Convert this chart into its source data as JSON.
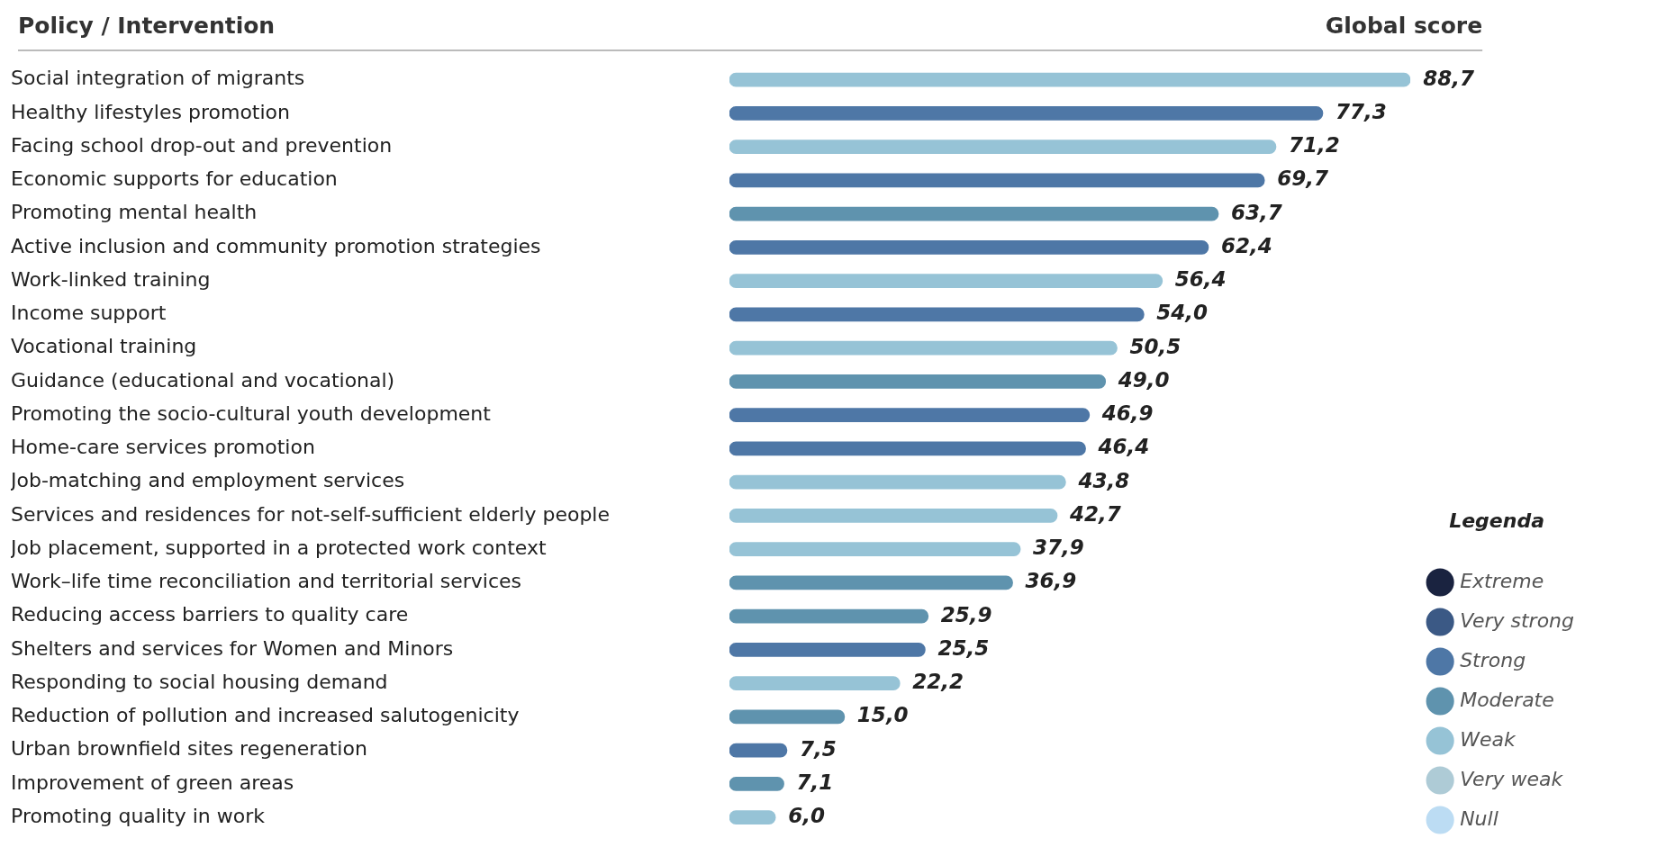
{
  "chart_data": {
    "type": "bar",
    "orientation": "horizontal",
    "stacked": true,
    "ylabel": "Policy / Intervention",
    "annotations": [
      "Global score"
    ],
    "legend_title": "Legenda",
    "legend": "bottom right",
    "tick_labels": "y",
    "grid": false,
    "categories": [
      "Social integration of migrants",
      "Healthy lifestyles promotion",
      "Facing school drop-out and prevention",
      "Economic supports for education",
      "Promoting mental health",
      "Active inclusion and community promotion strategies",
      "Work-linked training",
      "Income support",
      "Vocational training",
      "Guidance (educational and vocational)",
      "Promoting the socio-cultural youth development",
      "Home-care services promotion",
      "Job-matching and employment services",
      "Services and residences for not-self-sufficient elderly people",
      "Job placement, supported in a protected work context",
      "Work–life time reconciliation and territorial services",
      "Reducing access barriers to quality care",
      "Shelters and services for Women and Minors",
      "Responding to social housing demand",
      "Reduction of pollution and increased salutogenicity",
      "Urban brownfield sites regeneration",
      "Improvement of green areas",
      "Promoting quality in work"
    ],
    "series": [
      {
        "name": "Extreme",
        "color": "#1a2340",
        "values": [
          null,
          null,
          null,
          null,
          null,
          null,
          null,
          null,
          null,
          null,
          null,
          null,
          null,
          null,
          null,
          null,
          null,
          null,
          null,
          null,
          null,
          null,
          null
        ],
        "value_labels": [
          null,
          null,
          null,
          null,
          null,
          null,
          null,
          null,
          null,
          null,
          null,
          null,
          null,
          null,
          null,
          null,
          null,
          null,
          null,
          null,
          null,
          null,
          null
        ]
      },
      {
        "name": "Very strong",
        "color": "#3b5985",
        "values": [
          null,
          null,
          null,
          null,
          null,
          null,
          null,
          null,
          null,
          null,
          null,
          null,
          null,
          null,
          null,
          null,
          null,
          null,
          null,
          null,
          null,
          null,
          null
        ],
        "value_labels": [
          null,
          null,
          null,
          null,
          null,
          null,
          null,
          null,
          null,
          null,
          null,
          null,
          null,
          null,
          null,
          null,
          null,
          null,
          null,
          null,
          null,
          null,
          null
        ]
      },
      {
        "name": "Strong",
        "color": "#4e77a6",
        "values": [
          null,
          77.3,
          null,
          69.7,
          null,
          62.4,
          null,
          54.0,
          null,
          null,
          46.9,
          46.4,
          null,
          null,
          null,
          null,
          null,
          25.5,
          null,
          null,
          7.5,
          null,
          null
        ],
        "value_labels": [
          null,
          "77,3",
          null,
          "69,7",
          null,
          "62,4",
          null,
          "54,0",
          null,
          null,
          "46,9",
          "46,4",
          null,
          null,
          null,
          null,
          null,
          "25,5",
          null,
          null,
          "7,5",
          null,
          null
        ]
      },
      {
        "name": "Moderate",
        "color": "#5f93ae",
        "values": [
          null,
          null,
          null,
          null,
          63.7,
          null,
          null,
          null,
          null,
          49.0,
          null,
          null,
          null,
          null,
          null,
          36.9,
          25.9,
          null,
          null,
          15.0,
          null,
          7.1,
          null
        ],
        "value_labels": [
          null,
          null,
          null,
          null,
          "63,7",
          null,
          null,
          null,
          null,
          "49,0",
          null,
          null,
          null,
          null,
          null,
          "36,9",
          "25,9",
          null,
          null,
          "15,0",
          null,
          "7,1",
          null
        ]
      },
      {
        "name": "Weak",
        "color": "#96c3d6",
        "values": [
          88.7,
          null,
          71.2,
          null,
          null,
          null,
          56.4,
          null,
          50.5,
          null,
          null,
          null,
          43.8,
          42.7,
          37.9,
          null,
          null,
          null,
          22.2,
          null,
          null,
          null,
          6.0
        ],
        "value_labels": [
          "88,7",
          null,
          "71,2",
          null,
          null,
          null,
          "56,4",
          null,
          "50,5",
          null,
          null,
          null,
          "43,8",
          "42,7",
          "37,9",
          null,
          null,
          null,
          "22,2",
          null,
          null,
          null,
          "6,0"
        ]
      },
      {
        "name": "Very weak",
        "color": "#aecbd6",
        "values": [
          null,
          null,
          null,
          null,
          null,
          null,
          null,
          null,
          null,
          null,
          null,
          null,
          null,
          null,
          null,
          null,
          null,
          null,
          null,
          null,
          null,
          null,
          null
        ],
        "value_labels": [
          null,
          null,
          null,
          null,
          null,
          null,
          null,
          null,
          null,
          null,
          null,
          null,
          null,
          null,
          null,
          null,
          null,
          null,
          null,
          null,
          null,
          null,
          null
        ]
      },
      {
        "name": "Null",
        "color": "#bcdcf3",
        "values": [
          null,
          null,
          null,
          null,
          null,
          null,
          null,
          null,
          null,
          null,
          null,
          null,
          null,
          null,
          null,
          null,
          null,
          null,
          null,
          null,
          null,
          null,
          null
        ],
        "value_labels": [
          null,
          null,
          null,
          null,
          null,
          null,
          null,
          null,
          null,
          null,
          null,
          null,
          null,
          null,
          null,
          null,
          null,
          null,
          null,
          null,
          null,
          null,
          null
        ]
      }
    ]
  }
}
